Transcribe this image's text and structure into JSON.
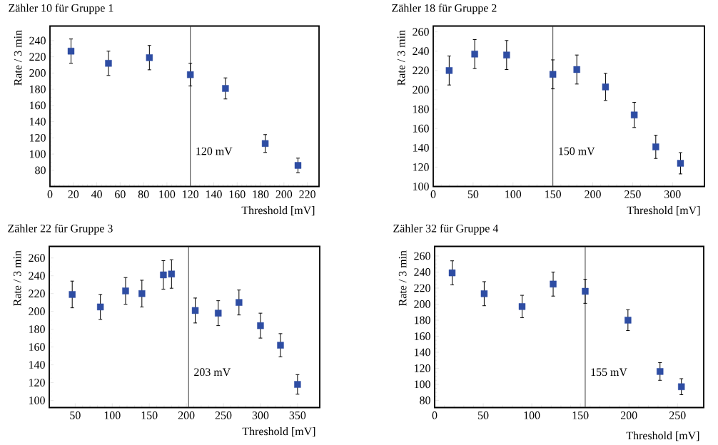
{
  "chart_data": [
    {
      "type": "scatter",
      "title": "Zähler 10 für Gruppe 1",
      "xlabel": "Threshold [mV]",
      "ylabel": "Rate / 3 min",
      "color": "#2e4da3",
      "marker": "square",
      "x": [
        18,
        50,
        85,
        120,
        150,
        184,
        212
      ],
      "values": [
        227,
        212,
        219,
        198,
        181,
        113,
        86
      ],
      "errors": [
        15,
        15,
        15,
        14,
        13,
        11,
        9
      ],
      "xlim": [
        0,
        230
      ],
      "ylim": [
        60,
        258
      ],
      "xticks": [
        0,
        20,
        40,
        60,
        80,
        100,
        120,
        140,
        160,
        180,
        200,
        220
      ],
      "yticks": [
        80,
        100,
        120,
        140,
        160,
        180,
        200,
        220,
        240
      ],
      "ref_lines": [
        {
          "axis": "x",
          "value": 120,
          "label": "120 mV"
        }
      ]
    },
    {
      "type": "scatter",
      "title": "Zähler 18 für Gruppe 2",
      "xlabel": "Threshold [mV]",
      "ylabel": "Rate / 3 min",
      "color": "#2e4da3",
      "marker": "square",
      "x": [
        20,
        52,
        92,
        150,
        180,
        216,
        252,
        279,
        310
      ],
      "values": [
        220,
        237,
        236,
        216,
        221,
        203,
        174,
        141,
        124
      ],
      "errors": [
        15,
        15,
        15,
        15,
        15,
        14,
        13,
        12,
        11
      ],
      "xlim": [
        0,
        340
      ],
      "ylim": [
        100,
        266
      ],
      "xticks": [
        0,
        50,
        100,
        150,
        200,
        250,
        300
      ],
      "yticks": [
        100,
        120,
        140,
        160,
        180,
        200,
        220,
        240,
        260
      ],
      "ref_lines": [
        {
          "axis": "x",
          "value": 150,
          "label": "150 mV"
        }
      ]
    },
    {
      "type": "scatter",
      "title": "Zähler 22 für Gruppe 3",
      "xlabel": "Threshold [mV]",
      "ylabel": "Rate / 3 min",
      "color": "#2e4da3",
      "marker": "square",
      "x": [
        46,
        84,
        118,
        140,
        169,
        180,
        212,
        243,
        271,
        300,
        327,
        350
      ],
      "values": [
        219,
        205,
        223,
        220,
        241,
        242,
        201,
        198,
        210,
        184,
        162,
        118
      ],
      "errors": [
        15,
        14,
        15,
        15,
        16,
        16,
        14,
        14,
        14,
        14,
        13,
        11
      ],
      "xlim": [
        15,
        380
      ],
      "ylim": [
        92,
        273
      ],
      "xticks": [
        50,
        100,
        150,
        200,
        250,
        300,
        350
      ],
      "yticks": [
        100,
        120,
        140,
        160,
        180,
        200,
        220,
        240,
        260
      ],
      "ref_lines": [
        {
          "axis": "x",
          "value": 203,
          "label": "203 mV"
        }
      ]
    },
    {
      "type": "scatter",
      "title": "Zähler 32 für Gruppe 4",
      "xlabel": "Threshold [mV]",
      "ylabel": "Rate / 3 min",
      "color": "#2e4da3",
      "marker": "square",
      "x": [
        18,
        51,
        90,
        122,
        155,
        199,
        232,
        254
      ],
      "values": [
        239,
        213,
        197,
        225,
        216,
        180,
        116,
        97
      ],
      "errors": [
        15,
        15,
        14,
        15,
        15,
        13,
        11,
        10
      ],
      "xlim": [
        0,
        277
      ],
      "ylim": [
        71,
        272
      ],
      "xticks": [
        0,
        50,
        100,
        150,
        200,
        250
      ],
      "yticks": [
        80,
        100,
        120,
        140,
        160,
        180,
        200,
        220,
        240,
        260
      ],
      "ref_lines": [
        {
          "axis": "x",
          "value": 155,
          "label": "155 mV"
        }
      ]
    }
  ]
}
